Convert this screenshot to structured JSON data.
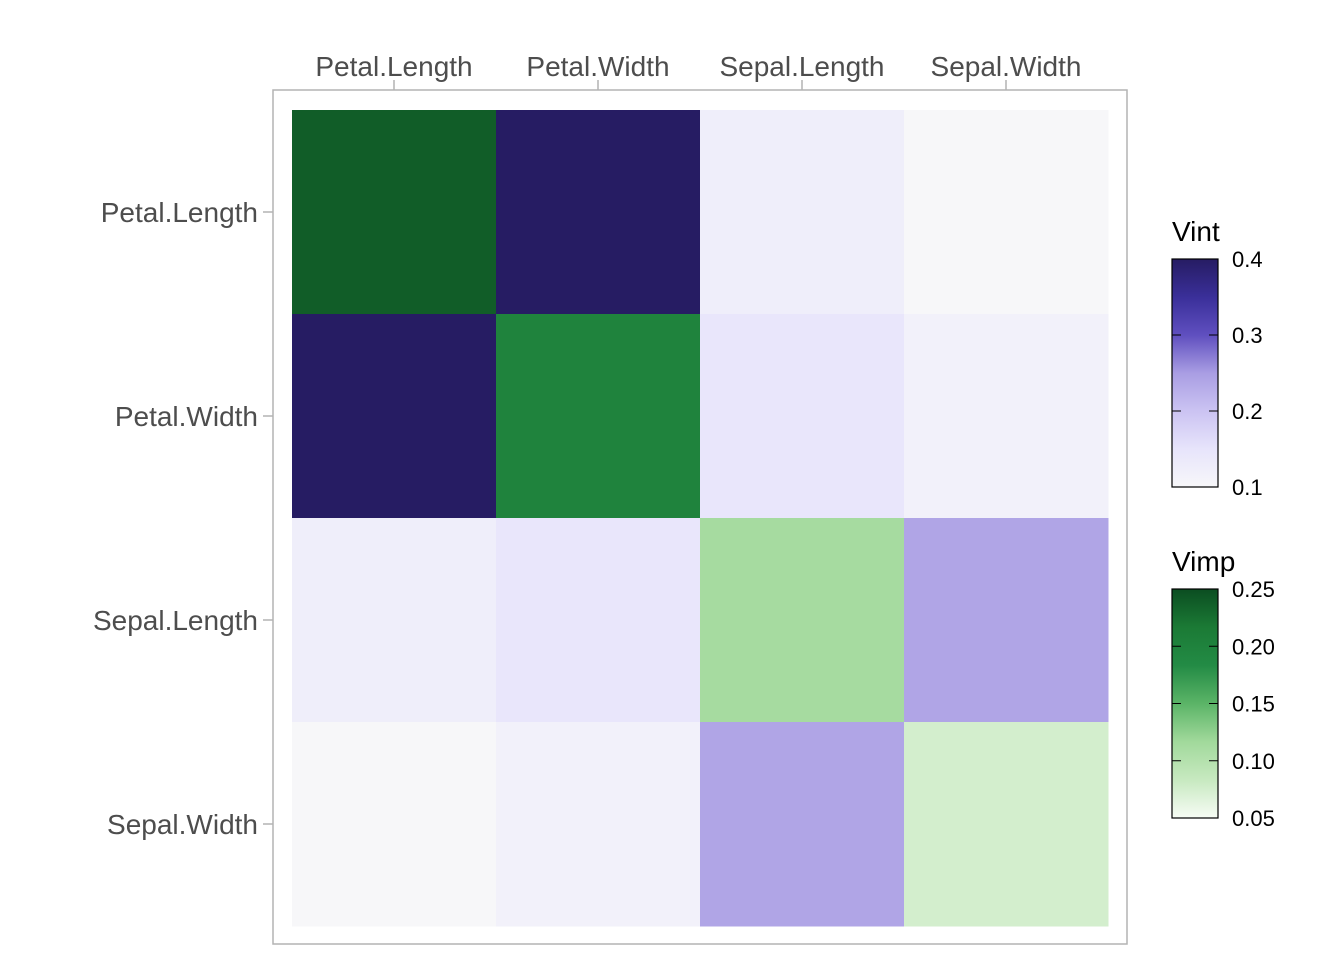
{
  "chart_data": {
    "type": "heatmap",
    "title": "",
    "variables": [
      "Petal.Length",
      "Petal.Width",
      "Sepal.Length",
      "Sepal.Width"
    ],
    "diagonal_measure": "Vimp",
    "off_diagonal_measure": "Vint",
    "vimp": {
      "Petal.Length": 0.238,
      "Petal.Width": 0.2,
      "Sepal.Length": 0.112,
      "Sepal.Width": 0.075
    },
    "vint": [
      [
        null,
        0.4,
        0.125,
        0.1
      ],
      [
        0.4,
        null,
        0.145,
        0.115
      ],
      [
        0.125,
        0.145,
        null,
        0.24
      ],
      [
        0.1,
        0.115,
        0.24,
        null
      ]
    ],
    "legends": [
      {
        "title": "Vint",
        "ticks": [
          "0.4",
          "0.3",
          "0.2",
          "0.1"
        ],
        "tick_values": [
          0.4,
          0.3,
          0.2,
          0.1
        ],
        "range": [
          0.1,
          0.4
        ],
        "colors": [
          "#f7f7f9",
          "#e7e4fb",
          "#cbc3f2",
          "#a99de3",
          "#5f4fbf",
          "#3a2f99",
          "#261c63"
        ]
      },
      {
        "title": "Vimp",
        "ticks": [
          "0.25",
          "0.20",
          "0.15",
          "0.10",
          "0.05"
        ],
        "tick_values": [
          0.25,
          0.2,
          0.15,
          0.1,
          0.05
        ],
        "range": [
          0.05,
          0.25
        ],
        "colors": [
          "#f7fcf5",
          "#c7e9c0",
          "#a1d99b",
          "#5bb467",
          "#238b45",
          "#1b7a35",
          "#0b4d21"
        ]
      }
    ],
    "x_axis_position": "top",
    "legend_position": "right"
  }
}
